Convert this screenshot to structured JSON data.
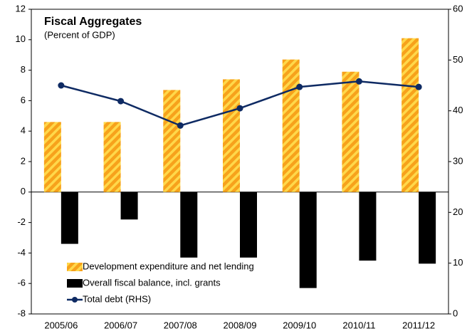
{
  "chart_data": {
    "type": "bar",
    "title": "Fiscal Aggregates",
    "subtitle": "(Percent of GDP)",
    "categories": [
      "2005/06",
      "2006/07",
      "2007/08",
      "2008/09",
      "2009/10",
      "2010/11",
      "2011/12"
    ],
    "series": [
      {
        "name": "Development expenditure and net lending",
        "type": "bar",
        "color": "#f7a21b",
        "stripe_color": "#ffd84a",
        "values": [
          4.6,
          4.6,
          6.7,
          7.4,
          8.7,
          7.9,
          10.1
        ]
      },
      {
        "name": "Overall fiscal balance, incl. grants",
        "type": "bar",
        "color": "#000000",
        "values": [
          -3.4,
          -1.8,
          -4.3,
          -4.3,
          -6.3,
          -4.5,
          -4.7
        ]
      },
      {
        "name": "Total debt (RHS)",
        "type": "line",
        "axis": "y2",
        "color": "#0e2a63",
        "values": [
          45.0,
          41.9,
          37.1,
          40.5,
          44.7,
          45.8,
          44.7
        ]
      }
    ],
    "ylim": [
      -8,
      12
    ],
    "yticks": [
      -8,
      -6,
      -4,
      -2,
      0,
      2,
      4,
      6,
      8,
      10,
      12
    ],
    "y2lim": [
      0,
      60
    ],
    "y2ticks": [
      0,
      10,
      20,
      30,
      40,
      50,
      60
    ],
    "grid": false,
    "legend": "lower left"
  }
}
